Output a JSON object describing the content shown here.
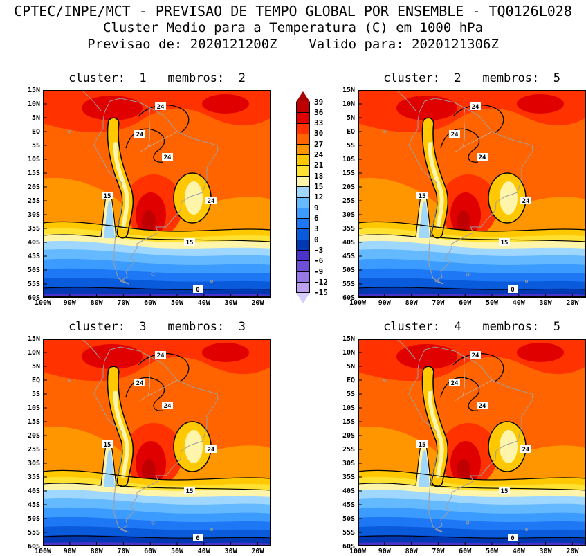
{
  "header": {
    "line1": "CPTEC/INPE/MCT - PREVISAO DE TEMPO GLOBAL POR ENSEMBLE - TQ0126L028",
    "line2": "Cluster Medio para a Temperatura (C) em 1000 hPa",
    "line3": "Previsao de: 2020121200Z    Valido para: 2020121306Z"
  },
  "panels": [
    {
      "id": 1,
      "title": "cluster:  1   membros:  2"
    },
    {
      "id": 2,
      "title": "cluster:  2   membros:  5"
    },
    {
      "id": 3,
      "title": "cluster:  3   membros:  3"
    },
    {
      "id": 4,
      "title": "cluster:  4   membros:  5"
    }
  ],
  "axes": {
    "lat": [
      "15N",
      "10N",
      "5N",
      "EQ",
      "5S",
      "10S",
      "15S",
      "20S",
      "25S",
      "30S",
      "35S",
      "40S",
      "45S",
      "50S",
      "55S",
      "60S"
    ],
    "lon": [
      "100W",
      "90W",
      "80W",
      "70W",
      "60W",
      "50W",
      "40W",
      "30W",
      "20W"
    ]
  },
  "colorbar": {
    "labels": [
      "39",
      "36",
      "33",
      "30",
      "27",
      "24",
      "21",
      "18",
      "15",
      "12",
      "9",
      "6",
      "3",
      "0",
      "-3",
      "-6",
      "-9",
      "-12",
      "-15"
    ],
    "colors": [
      "#C00000",
      "#E10000",
      "#FF3200",
      "#FF6400",
      "#FF9600",
      "#FFC800",
      "#FFE132",
      "#FFF5AA",
      "#A0D7FF",
      "#64B9FF",
      "#3C9BFF",
      "#1E78F5",
      "#0A5ADC",
      "#0038B4",
      "#4B32C8",
      "#6E50D7",
      "#9678E6",
      "#BEA0F0"
    ],
    "arrow_top": "#AA0000",
    "arrow_bottom": "#D8CCFA"
  },
  "contour_labels": {
    "c24": "24",
    "c15": "15",
    "c0": "0"
  },
  "chart_data": {
    "type": "heatmap",
    "title": "Cluster Medio para a Temperatura (C) em 1000 hPa",
    "model": "CPTEC/INPE/MCT - PREVISAO DE TEMPO GLOBAL POR ENSEMBLE - TQ0126L028",
    "forecast_init": "2020121200Z",
    "forecast_valid": "2020121306Z",
    "panels": [
      {
        "cluster": 1,
        "membros": 2
      },
      {
        "cluster": 2,
        "membros": 5
      },
      {
        "cluster": 3,
        "membros": 3
      },
      {
        "cluster": 4,
        "membros": 5
      }
    ],
    "x_ticks": [
      "100W",
      "90W",
      "80W",
      "70W",
      "60W",
      "50W",
      "40W",
      "30W",
      "20W"
    ],
    "y_ticks": [
      "15N",
      "10N",
      "5N",
      "EQ",
      "5S",
      "10S",
      "15S",
      "20S",
      "25S",
      "30S",
      "35S",
      "40S",
      "45S",
      "50S",
      "55S",
      "60S"
    ],
    "colorbar_levels_c": [
      39,
      36,
      33,
      30,
      27,
      24,
      21,
      18,
      15,
      12,
      9,
      6,
      3,
      0,
      -3,
      -6,
      -9,
      -12,
      -15
    ],
    "labeled_contours_c": [
      24,
      15,
      0
    ],
    "legend_position": "center-between-top-panels",
    "grid": false
  }
}
